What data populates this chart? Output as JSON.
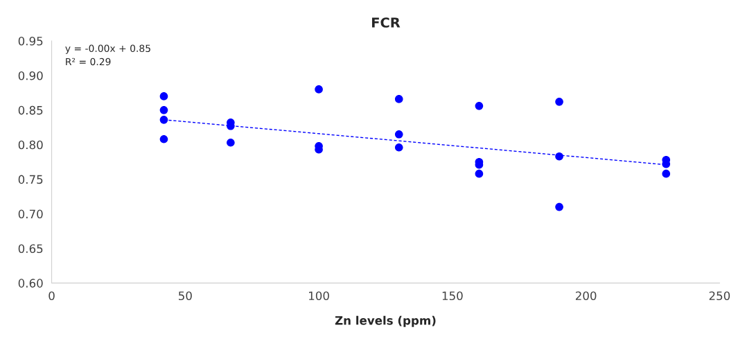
{
  "chart_data": {
    "type": "scatter",
    "title": "FCR",
    "xlabel": "Zn levels (ppm)",
    "xlim": [
      0,
      250
    ],
    "xticks": [
      0,
      50,
      100,
      150,
      200,
      250
    ],
    "ylim": [
      0.6,
      0.95
    ],
    "yticks": [
      {
        "value": 0.6,
        "label": "0.60"
      },
      {
        "value": 0.65,
        "label": "0.65"
      },
      {
        "value": 0.7,
        "label": "0.70"
      },
      {
        "value": 0.75,
        "label": "0.75"
      },
      {
        "value": 0.8,
        "label": "0.80"
      },
      {
        "value": 0.85,
        "label": "0.85"
      },
      {
        "value": 0.9,
        "label": "0.90"
      },
      {
        "value": 0.95,
        "label": "0.95"
      }
    ],
    "grid": false,
    "legend": false,
    "marker": "circle",
    "series": [
      {
        "color": "#0000ff",
        "x": [
          42,
          42,
          42,
          42,
          67,
          67,
          67,
          100,
          100,
          100,
          130,
          130,
          130,
          160,
          160,
          160,
          160,
          190,
          190,
          190,
          230,
          230,
          230
        ],
        "values": [
          0.87,
          0.85,
          0.836,
          0.808,
          0.832,
          0.827,
          0.803,
          0.88,
          0.798,
          0.793,
          0.866,
          0.815,
          0.796,
          0.856,
          0.775,
          0.771,
          0.758,
          0.862,
          0.783,
          0.71,
          0.778,
          0.772,
          0.758
        ]
      },
      {
        "type": "line",
        "color": "#0000ff",
        "line_style": "dashed",
        "marker": "none",
        "x": [
          42,
          230
        ],
        "values": [
          0.836,
          0.771
        ]
      }
    ],
    "annotations": [
      "y = -0.00x + 0.85",
      "R² = 0.29"
    ]
  }
}
